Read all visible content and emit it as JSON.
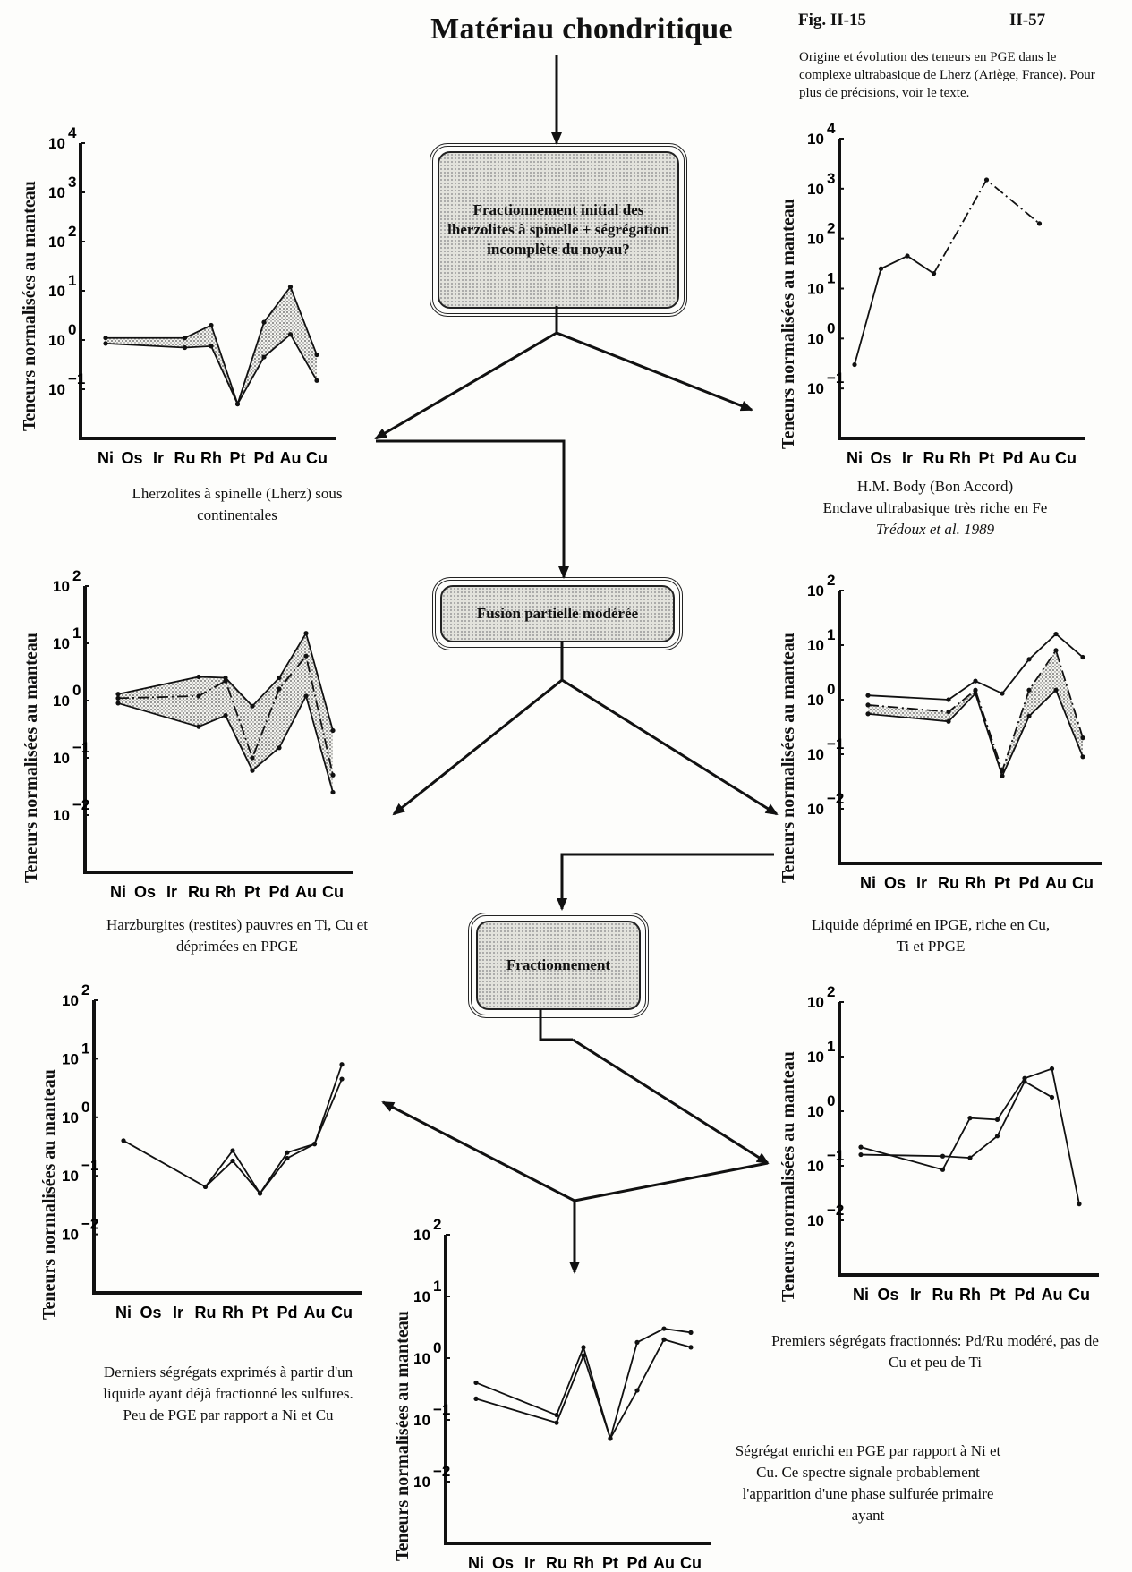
{
  "header": {
    "title": "Matériau chondritique",
    "fig_label": "Fig. II-15",
    "page_num": "II-57",
    "caption": "Origine et évolution des teneurs en PGE dans le complexe ultrabasique de Lherz (Ariège, France). Pour plus de précisions, voir le texte."
  },
  "boxes": {
    "box1": "Fractionnement initial des lherzolites à spinelle + ségrégation incomplète du noyau?",
    "box2": "Fusion partielle modérée",
    "box3": "Fractionnement"
  },
  "y_axis_label": "Teneurs normalisées au manteau",
  "captions": {
    "c1": "Lherzolites à spinelle (Lherz) sous continentales",
    "c2a": "H.M. Body (Bon Accord)",
    "c2b": "Enclave ultrabasique très riche en Fe",
    "c2c": "Trédoux et al. 1989",
    "c3": "Harzburgites (restites) pauvres en Ti, Cu et déprimées en PPGE",
    "c4": "Liquide déprimé en IPGE, riche en Cu, Ti et PPGE",
    "c5": "Derniers ségrégats exprimés à partir d'un liquide ayant déjà fractionné les sulfures. Peu de PGE par rapport a Ni et Cu",
    "c6": "Premiers ségrégats fractionnés: Pd/Ru modéré, pas de Cu et peu de Ti",
    "c7": "Ségrégat enrichi en PGE par rapport à Ni et Cu. Ce spectre signale probablement l'apparition d'une phase sulfurée primaire ayant"
  },
  "chart_data": [
    {
      "type": "line",
      "id": "lherzolites",
      "x": [
        "Ni",
        "Os",
        "Ir",
        "Ru",
        "Rh",
        "Pt",
        "Pd",
        "Au",
        "Cu"
      ],
      "y_scale": "log",
      "ylim_exp": [
        -2,
        4
      ],
      "ytick_exps": [
        -1,
        0,
        1,
        2,
        3,
        4
      ],
      "series": [
        {
          "style": "solid",
          "values": [
            [
              0,
              1.1
            ],
            [
              3,
              1.1
            ],
            [
              4,
              2.0
            ],
            [
              5,
              0.05
            ],
            [
              6,
              2.3
            ],
            [
              7,
              12
            ],
            [
              8,
              0.5
            ]
          ]
        },
        {
          "style": "solid",
          "values": [
            [
              0,
              0.85
            ],
            [
              3,
              0.7
            ],
            [
              4,
              0.75
            ],
            [
              5,
              0.05
            ],
            [
              6,
              0.45
            ],
            [
              7,
              1.3
            ],
            [
              8,
              0.15
            ]
          ]
        }
      ],
      "shade_between": [
        0,
        1
      ]
    },
    {
      "type": "line",
      "id": "hm-body",
      "x": [
        "Ni",
        "Os",
        "Ir",
        "Ru",
        "Rh",
        "Pt",
        "Pd",
        "Au",
        "Cu"
      ],
      "y_scale": "log",
      "ylim_exp": [
        -2,
        4
      ],
      "ytick_exps": [
        -1,
        0,
        1,
        2,
        3,
        4
      ],
      "series": [
        {
          "style": "solid",
          "values": [
            [
              0,
              0.3
            ],
            [
              1,
              25
            ],
            [
              2,
              45
            ],
            [
              3,
              20
            ]
          ]
        },
        {
          "style": "dashdot",
          "values": [
            [
              3,
              20
            ],
            [
              5,
              1500
            ],
            [
              7,
              200
            ]
          ]
        }
      ]
    },
    {
      "type": "line",
      "id": "harzburgites",
      "x": [
        "Ni",
        "Os",
        "Ir",
        "Ru",
        "Rh",
        "Pt",
        "Pd",
        "Au",
        "Cu"
      ],
      "y_scale": "log",
      "ylim_exp": [
        -3,
        2
      ],
      "ytick_exps": [
        -2,
        -1,
        0,
        1,
        2
      ],
      "series": [
        {
          "style": "solid",
          "values": [
            [
              0,
              1.3
            ],
            [
              3,
              2.6
            ],
            [
              4,
              2.5
            ],
            [
              5,
              0.8
            ],
            [
              6,
              2.5
            ],
            [
              7,
              15
            ],
            [
              8,
              0.3
            ]
          ]
        },
        {
          "style": "dashdot",
          "values": [
            [
              0,
              1.1
            ],
            [
              3,
              1.2
            ],
            [
              4,
              2.2
            ],
            [
              5,
              0.1
            ],
            [
              6,
              1.6
            ],
            [
              7,
              6
            ],
            [
              8,
              0.05
            ]
          ]
        },
        {
          "style": "solid",
          "values": [
            [
              0,
              0.9
            ],
            [
              3,
              0.35
            ],
            [
              4,
              0.55
            ],
            [
              5,
              0.06
            ],
            [
              6,
              0.15
            ],
            [
              7,
              1.2
            ],
            [
              8,
              0.025
            ]
          ]
        }
      ],
      "shade_between": [
        0,
        2
      ]
    },
    {
      "type": "line",
      "id": "liquide",
      "x": [
        "Ni",
        "Os",
        "Ir",
        "Ru",
        "Rh",
        "Pt",
        "Pd",
        "Au",
        "Cu"
      ],
      "y_scale": "log",
      "ylim_exp": [
        -3,
        2
      ],
      "ytick_exps": [
        -2,
        -1,
        0,
        1,
        2
      ],
      "series": [
        {
          "style": "solid",
          "values": [
            [
              0,
              1.2
            ],
            [
              3,
              1.0
            ],
            [
              4,
              2.2
            ],
            [
              5,
              1.3
            ],
            [
              6,
              5.5
            ],
            [
              7,
              16
            ],
            [
              8,
              6
            ]
          ]
        },
        {
          "style": "dashdot",
          "values": [
            [
              0,
              0.8
            ],
            [
              3,
              0.6
            ],
            [
              4,
              1.5
            ],
            [
              5,
              0.05
            ],
            [
              6,
              1.5
            ],
            [
              7,
              8
            ],
            [
              8,
              0.2
            ]
          ]
        },
        {
          "style": "solid",
          "values": [
            [
              0,
              0.55
            ],
            [
              3,
              0.4
            ],
            [
              4,
              1.3
            ],
            [
              5,
              0.04
            ],
            [
              6,
              0.5
            ],
            [
              7,
              1.5
            ],
            [
              8,
              0.09
            ]
          ]
        }
      ],
      "shade_between": [
        1,
        2
      ]
    },
    {
      "type": "line",
      "id": "derniers",
      "x": [
        "Ni",
        "Os",
        "Ir",
        "Ru",
        "Rh",
        "Pt",
        "Pd",
        "Au",
        "Cu"
      ],
      "y_scale": "log",
      "ylim_exp": [
        -3,
        2
      ],
      "ytick_exps": [
        -2,
        -1,
        0,
        1,
        2
      ],
      "series": [
        {
          "style": "solid",
          "values": [
            [
              0,
              0.4
            ],
            [
              3,
              0.065
            ],
            [
              4,
              0.27
            ],
            [
              5,
              0.05
            ],
            [
              6,
              0.25
            ],
            [
              7,
              0.35
            ],
            [
              8,
              8
            ]
          ]
        },
        {
          "style": "solid",
          "values": [
            [
              3,
              0.065
            ],
            [
              4,
              0.18
            ],
            [
              5,
              0.05
            ],
            [
              6,
              0.2
            ],
            [
              7,
              0.35
            ],
            [
              8,
              4.5
            ]
          ]
        }
      ]
    },
    {
      "type": "line",
      "id": "segregat-enrichi",
      "x": [
        "Ni",
        "Os",
        "Ir",
        "Ru",
        "Rh",
        "Pt",
        "Pd",
        "Au",
        "Cu"
      ],
      "y_scale": "log",
      "ylim_exp": [
        -3,
        2
      ],
      "ytick_exps": [
        -2,
        -1,
        0,
        1,
        2
      ],
      "series": [
        {
          "style": "solid",
          "values": [
            [
              0,
              0.4
            ],
            [
              3,
              0.12
            ],
            [
              4,
              1.5
            ],
            [
              5,
              0.05
            ],
            [
              6,
              1.8
            ],
            [
              7,
              3
            ],
            [
              8,
              2.6
            ]
          ]
        },
        {
          "style": "solid",
          "values": [
            [
              0,
              0.22
            ],
            [
              3,
              0.09
            ],
            [
              4,
              1.1
            ],
            [
              5,
              0.05
            ],
            [
              6,
              0.3
            ],
            [
              7,
              2
            ],
            [
              8,
              1.5
            ]
          ]
        }
      ]
    },
    {
      "type": "line",
      "id": "premiers",
      "x": [
        "Ni",
        "Os",
        "Ir",
        "Ru",
        "Rh",
        "Pt",
        "Pd",
        "Au",
        "Cu"
      ],
      "y_scale": "log",
      "ylim_exp": [
        -3,
        2
      ],
      "ytick_exps": [
        -2,
        -1,
        0,
        1,
        2
      ],
      "series": [
        {
          "style": "solid",
          "values": [
            [
              0,
              0.22
            ],
            [
              3,
              0.085
            ],
            [
              4,
              0.75
            ],
            [
              5,
              0.7
            ],
            [
              6,
              4
            ],
            [
              7,
              6
            ],
            [
              8,
              0.02
            ]
          ]
        },
        {
          "style": "solid",
          "values": [
            [
              0,
              0.16
            ],
            [
              3,
              0.15
            ],
            [
              4,
              0.14
            ],
            [
              5,
              0.35
            ],
            [
              6,
              3.5
            ],
            [
              7,
              1.8
            ]
          ]
        }
      ]
    }
  ]
}
